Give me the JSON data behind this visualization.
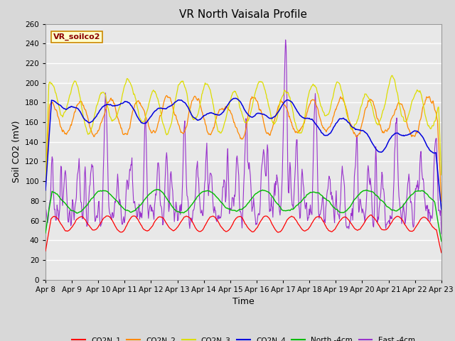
{
  "title": "VR North Vaisala Profile",
  "xlabel": "Time",
  "ylabel": "Soil CO2 (mV)",
  "annotation": "VR_soilco2",
  "ylim": [
    0,
    260
  ],
  "yticks": [
    0,
    20,
    40,
    60,
    80,
    100,
    120,
    140,
    160,
    180,
    200,
    220,
    240,
    260
  ],
  "xtick_labels": [
    "Apr 8",
    "Apr 9",
    "Apr 10",
    "Apr 11",
    "Apr 12",
    "Apr 13",
    "Apr 14",
    "Apr 15",
    "Apr 16",
    "Apr 17",
    "Apr 18",
    "Apr 19",
    "Apr 20",
    "Apr 21",
    "Apr 22",
    "Apr 23"
  ],
  "series_colors": {
    "CO2N_1": "#ff0000",
    "CO2N_2": "#ff8800",
    "CO2N_3": "#dddd00",
    "CO2N_4": "#0000dd",
    "North_4cm": "#00bb00",
    "East_4cm": "#9933cc"
  },
  "series_labels": [
    "CO2N_1",
    "CO2N_2",
    "CO2N_3",
    "CO2N_4",
    "North -4cm",
    "East -4cm"
  ],
  "background_color": "#d8d8d8",
  "plot_bg_color": "#e8e8e8",
  "grid_color": "#ffffff",
  "title_fontsize": 11,
  "axis_fontsize": 9,
  "tick_fontsize": 7.5
}
